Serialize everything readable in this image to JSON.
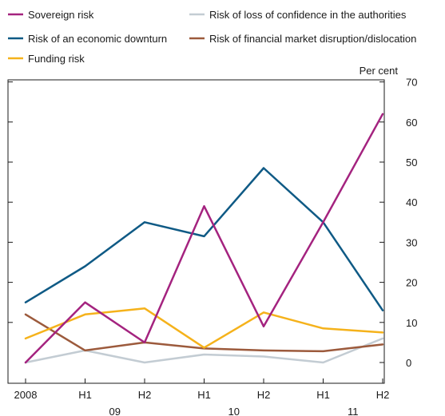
{
  "chart_data": {
    "type": "line",
    "unit_label": "Per cent",
    "categories": [
      "2008",
      "H1",
      "H2",
      "H1",
      "H2",
      "H1",
      "H2"
    ],
    "year_labels": [
      "09",
      "10",
      "11"
    ],
    "ylim": [
      0,
      70
    ],
    "yticks": [
      0,
      10,
      20,
      30,
      40,
      50,
      60,
      70
    ],
    "grid": false,
    "legend_position": "top",
    "series": [
      {
        "name": "Sovereign risk",
        "color": "#a4237f",
        "values": [
          0,
          15,
          5,
          39,
          9,
          35,
          62
        ]
      },
      {
        "name": "Risk of loss of confidence in the authorities",
        "color": "#c3ccd3",
        "values": [
          0,
          3,
          0,
          2,
          1.5,
          0,
          6
        ]
      },
      {
        "name": "Risk of an economic downturn",
        "color": "#0f5a85",
        "values": [
          15,
          24,
          35,
          31.5,
          48.5,
          35,
          13
        ]
      },
      {
        "name": "Risk of financial market disruption/dislocation",
        "color": "#9c5a3c",
        "values": [
          12,
          3,
          5,
          3.5,
          3,
          2.8,
          4.5
        ]
      },
      {
        "name": "Funding risk",
        "color": "#f5b21b",
        "values": [
          6,
          12,
          13.5,
          3.7,
          12.5,
          8.5,
          7.5
        ]
      }
    ]
  }
}
